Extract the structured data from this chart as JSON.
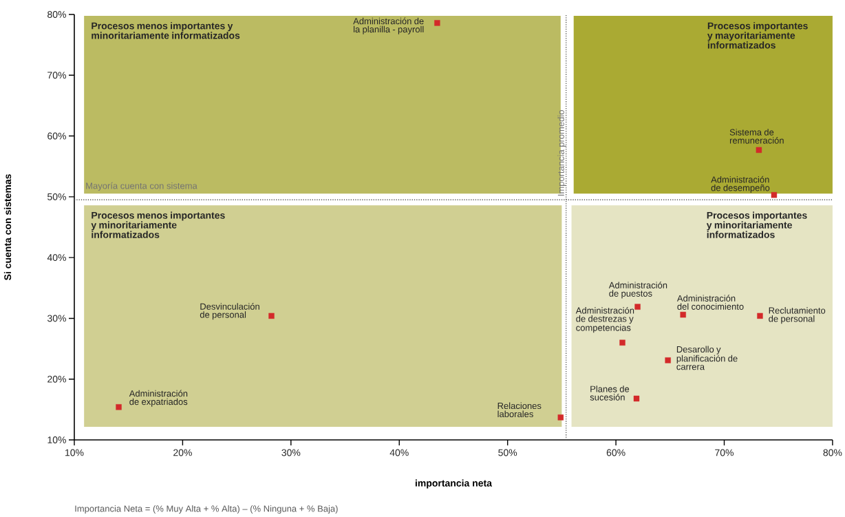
{
  "chart_data": {
    "type": "scatter",
    "xlabel": "importancia neta",
    "ylabel": "Si cuenta con sistemas",
    "x": [
      43.5,
      73.2,
      74.6,
      28.2,
      14.1,
      54.9,
      62.0,
      66.2,
      73.3,
      60.6,
      64.8,
      61.9
    ],
    "series": [
      {
        "color": "#d32a2a",
        "values": [
          78.6,
          57.7,
          50.3,
          30.4,
          15.4,
          13.7,
          31.9,
          30.6,
          30.4,
          26.0,
          23.1,
          16.8
        ]
      }
    ],
    "marker": "square",
    "xlim": [
      10,
      80
    ],
    "ylim": [
      10,
      80
    ],
    "xticks": [
      {
        "value": 10,
        "label": "10%"
      },
      {
        "value": 20,
        "label": "20%"
      },
      {
        "value": 30,
        "label": "30%"
      },
      {
        "value": 40,
        "label": "40%"
      },
      {
        "value": 50,
        "label": "50%"
      },
      {
        "value": 60,
        "label": "60%"
      },
      {
        "value": 70,
        "label": "70%"
      },
      {
        "value": 80,
        "label": "80%"
      }
    ],
    "yticks": [
      {
        "value": 10,
        "label": "10%"
      },
      {
        "value": 20,
        "label": "20%"
      },
      {
        "value": 30,
        "label": "30%"
      },
      {
        "value": 40,
        "label": "40%"
      },
      {
        "value": 50,
        "label": "50%"
      },
      {
        "value": 60,
        "label": "60%"
      },
      {
        "value": 70,
        "label": "70%"
      },
      {
        "value": 80,
        "label": "80%"
      }
    ],
    "ref_lines": [
      {
        "axis": "x",
        "value": 55.4,
        "label": "Importancia promedio",
        "color": "#555555",
        "line_style": "dotted"
      },
      {
        "axis": "y",
        "value": 49.5,
        "label": "Mayoría cuenta con sistema",
        "color": "#555555",
        "line_style": "dotted"
      }
    ],
    "bands": [
      {
        "axis": "x",
        "from": 10.9,
        "to": 54.9,
        "label": "Procesos menos importantes y minoritariamente informatizados",
        "color": "#bbbb62"
      },
      {
        "axis": "x",
        "from": 56.1,
        "to": 80,
        "label": "Procesos importantes y mayoritariamente informatizados",
        "color": "#aaaa33"
      },
      {
        "axis": "x",
        "from": 10.9,
        "to": 55.0,
        "label": "Procesos menos importantes y minoritariamente informatizados",
        "color": "#d0cf92"
      },
      {
        "axis": "x",
        "from": 55.9,
        "to": 80,
        "label": "Procesos importantes y minoritariamente informatizados",
        "color": "#e5e4c3"
      }
    ],
    "annotations": [
      {
        "text": "Administración de la planilla - payroll",
        "x": 43.5,
        "y": 78.6
      },
      {
        "text": "Sistema de remuneración",
        "x": 73.2,
        "y": 57.7
      },
      {
        "text": "Administración de desempeño",
        "x": 74.6,
        "y": 50.3
      },
      {
        "text": "Desvinculación de personal",
        "x": 28.2,
        "y": 30.4
      },
      {
        "text": "Administración de expatriados",
        "x": 14.1,
        "y": 15.4
      },
      {
        "text": "Relaciones laborales",
        "x": 54.9,
        "y": 13.7
      },
      {
        "text": "Administración de puestos",
        "x": 62.0,
        "y": 31.9
      },
      {
        "text": "Administración del conocimiento",
        "x": 66.2,
        "y": 30.6
      },
      {
        "text": "Reclutamiento de personal",
        "x": 73.3,
        "y": 30.4
      },
      {
        "text": "Administración de destrezas y competencias",
        "x": 60.6,
        "y": 26.0
      },
      {
        "text": "Desarollo y planificación de carrera",
        "x": 64.8,
        "y": 23.1
      },
      {
        "text": "Planes de sucesión",
        "x": 61.9,
        "y": 16.8
      },
      "Importancia Neta = (% Muy Alta + % Alta) – (% Ninguna + % Baja)"
    ]
  }
}
